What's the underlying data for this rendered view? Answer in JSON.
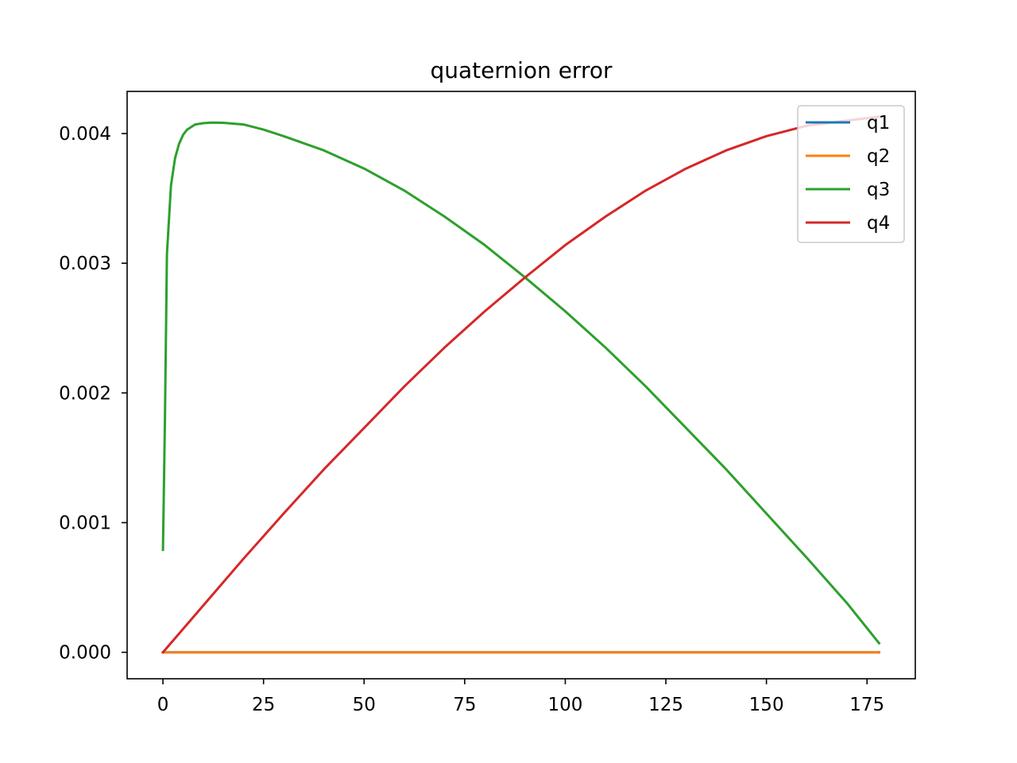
{
  "chart_data": {
    "type": "line",
    "title": "quaternion error",
    "xlabel": "",
    "ylabel": "",
    "xlim": [
      -8.9,
      187.0
    ],
    "ylim": [
      -0.000204,
      0.004325
    ],
    "xticks": [
      0,
      25,
      50,
      75,
      100,
      125,
      150,
      175
    ],
    "xtick_labels": [
      "0",
      "25",
      "50",
      "75",
      "100",
      "125",
      "150",
      "175"
    ],
    "yticks": [
      0.0,
      0.001,
      0.002,
      0.003,
      0.004
    ],
    "ytick_labels": [
      "0.000",
      "0.001",
      "0.002",
      "0.003",
      "0.004"
    ],
    "grid": false,
    "legend_position": "upper right",
    "series": [
      {
        "name": "q1",
        "color": "#1f77b4",
        "x": [
          0,
          178
        ],
        "y": [
          0.0,
          0.0
        ]
      },
      {
        "name": "q2",
        "color": "#ff7f0e",
        "x": [
          0,
          178
        ],
        "y": [
          0.0,
          0.0
        ]
      },
      {
        "name": "q3",
        "color": "#2ca02c",
        "x": [
          0,
          0.5,
          1,
          2,
          3,
          4,
          5,
          6,
          7,
          8,
          10,
          12,
          15,
          20,
          25,
          30,
          40,
          50,
          60,
          70,
          80,
          90,
          100,
          110,
          120,
          130,
          140,
          150,
          160,
          170,
          178
        ],
        "y": [
          0.00079,
          0.0018,
          0.00307,
          0.0036,
          0.00381,
          0.00392,
          0.00399,
          0.00403,
          0.00405,
          0.00407,
          0.00408,
          0.004085,
          0.004083,
          0.00407,
          0.00403,
          0.00398,
          0.00387,
          0.00373,
          0.00356,
          0.00336,
          0.00314,
          0.00289,
          0.00263,
          0.00235,
          0.00205,
          0.00173,
          0.00141,
          0.00107,
          0.00073,
          0.00038,
          7e-05
        ]
      },
      {
        "name": "q4",
        "color": "#d62728",
        "x": [
          0,
          10,
          20,
          30,
          40,
          50,
          60,
          70,
          80,
          90,
          100,
          110,
          120,
          130,
          140,
          150,
          160,
          170,
          178
        ],
        "y": [
          0.0,
          0.00036,
          0.00072,
          0.00107,
          0.00141,
          0.00173,
          0.00205,
          0.00235,
          0.00263,
          0.00289,
          0.00314,
          0.00336,
          0.00356,
          0.00373,
          0.00387,
          0.00398,
          0.00406,
          0.0041,
          0.00413
        ]
      }
    ]
  }
}
